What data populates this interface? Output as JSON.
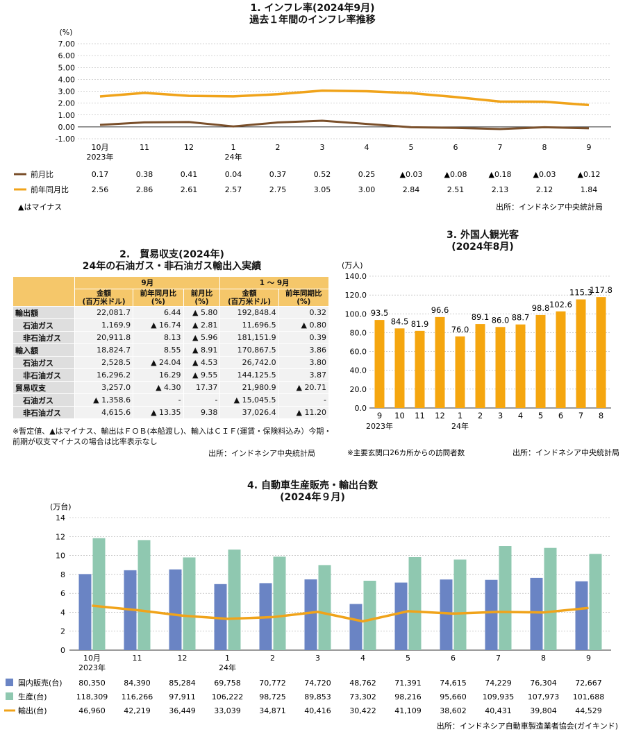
{
  "chart_data": [
    {
      "type": "line",
      "title": "1. インフレ率(2024年9月)",
      "subtitle": "過去１年間のインフレ率推移",
      "ylabel": "(%)",
      "ylim": [
        -1.0,
        7.0
      ],
      "yticks": [
        "7.00",
        "6.00",
        "5.00",
        "4.00",
        "3.00",
        "2.00",
        "1.00",
        "0.00",
        "-1.00"
      ],
      "categories": [
        "10月",
        "11",
        "12",
        "1",
        "2",
        "3",
        "4",
        "5",
        "6",
        "7",
        "8",
        "9"
      ],
      "category_sublabels": [
        "2023年",
        "",
        "",
        "24年",
        "",
        "",
        "",
        "",
        "",
        "",
        "",
        ""
      ],
      "series": [
        {
          "name": "前月比",
          "color": "#7a4f2a",
          "values": [
            0.17,
            0.38,
            0.41,
            0.04,
            0.37,
            0.52,
            0.25,
            -0.03,
            -0.08,
            -0.18,
            -0.03,
            -0.12
          ],
          "labels": [
            "0.17",
            "0.38",
            "0.41",
            "0.04",
            "0.37",
            "0.52",
            "0.25",
            "▲0.03",
            "▲0.08",
            "▲0.18",
            "▲0.03",
            "▲0.12"
          ]
        },
        {
          "name": "前年同月比",
          "color": "#f0a31a",
          "values": [
            2.56,
            2.86,
            2.61,
            2.57,
            2.75,
            3.05,
            3.0,
            2.84,
            2.51,
            2.13,
            2.12,
            1.84
          ],
          "labels": [
            "2.56",
            "2.86",
            "2.61",
            "2.57",
            "2.75",
            "3.05",
            "3.00",
            "2.84",
            "2.51",
            "2.13",
            "2.12",
            "1.84"
          ]
        }
      ],
      "note": "▲はマイナス",
      "source": "出所：インドネシア中央統計局",
      "grid": true
    },
    {
      "type": "table",
      "title": "2.　貿易収支(2024年)",
      "subtitle": "24年の石油ガス・非石油ガス輸出入実績",
      "group_headers": [
        "9月",
        "1 〜 9月"
      ],
      "columns": [
        "金額\n(百万米ドル)",
        "前年同月比\n(%)",
        "前月比\n(%)",
        "金額\n(百万米ドル)",
        "前年同期比\n(%)"
      ],
      "rows": [
        {
          "label": "輸出額",
          "sub": false,
          "cells": [
            "22,081.7",
            "6.44",
            "▲ 5.80",
            "192,848.4",
            "0.32"
          ]
        },
        {
          "label": "石油ガス",
          "sub": true,
          "cells": [
            "1,169.9",
            "▲ 16.74",
            "▲ 2.81",
            "11,696.5",
            "▲ 0.80"
          ]
        },
        {
          "label": "非石油ガス",
          "sub": true,
          "cells": [
            "20,911.8",
            "8.13",
            "▲ 5.96",
            "181,151.9",
            "0.39"
          ]
        },
        {
          "label": "輸入額",
          "sub": false,
          "cells": [
            "18,824.7",
            "8.55",
            "▲ 8.91",
            "170,867.5",
            "3.86"
          ]
        },
        {
          "label": "石油ガス",
          "sub": true,
          "cells": [
            "2,528.5",
            "▲ 24.04",
            "▲ 4.53",
            "26,742.0",
            "3.80"
          ]
        },
        {
          "label": "非石油ガス",
          "sub": true,
          "cells": [
            "16,296.2",
            "16.29",
            "▲ 9.55",
            "144,125.5",
            "3.87"
          ]
        },
        {
          "label": "貿易収支",
          "sub": false,
          "cells": [
            "3,257.0",
            "▲ 4.30",
            "17.37",
            "21,980.9",
            "▲ 20.71"
          ]
        },
        {
          "label": "石油ガス",
          "sub": true,
          "cells": [
            "▲ 1,358.6",
            "-",
            "-",
            "▲ 15,045.5",
            "-"
          ]
        },
        {
          "label": "非石油ガス",
          "sub": true,
          "cells": [
            "4,615.6",
            "▲ 13.35",
            "9.38",
            "37,026.4",
            "▲ 11.20"
          ]
        }
      ],
      "note": "※暫定値、▲はマイナス、輸出はＦＯＢ(本船渡し)、輸入はＣＩＦ(運賃・保険料込み）今期・前期が収支マイナスの場合は比率表示なし",
      "source": "出所：インドネシア中央統計局"
    },
    {
      "type": "bar",
      "title": "3. 外国人観光客",
      "subtitle": "(2024年8月)",
      "ylabel": "(万人)",
      "ylim": [
        0,
        140
      ],
      "yticks": [
        "140.0",
        "120.0",
        "100.0",
        "80.0",
        "60.0",
        "40.0",
        "20.0",
        "0.0"
      ],
      "categories": [
        "9",
        "10",
        "11",
        "12",
        "1",
        "2",
        "3",
        "4",
        "5",
        "6",
        "7",
        "8"
      ],
      "category_sublabels": [
        "2023年",
        "",
        "",
        "",
        "24年",
        "",
        "",
        "",
        "",
        "",
        "",
        ""
      ],
      "values": [
        93.5,
        84.5,
        81.9,
        96.6,
        76.0,
        89.1,
        86.0,
        88.7,
        98.8,
        102.6,
        115.3,
        117.8
      ],
      "labels": [
        "93.5",
        "84.5",
        "81.9",
        "96.6",
        "76.0",
        "89.1",
        "86.0",
        "88.7",
        "98.8",
        "102.6",
        "115.3",
        "117.8"
      ],
      "color": "#f5a60f",
      "note": "※主要玄関口26カ所からの訪問者数",
      "source": "出所：インドネシア中央統計局"
    },
    {
      "type": "bar",
      "title": "4. 自動車生産販売・輸出台数",
      "subtitle": "(2024年９月)",
      "ylabel": "(万台)",
      "ylim": [
        0,
        14
      ],
      "yticks": [
        "14",
        "12",
        "10",
        "8",
        "6",
        "4",
        "2",
        "0"
      ],
      "categories": [
        "10月",
        "11",
        "12",
        "1",
        "2",
        "3",
        "4",
        "5",
        "6",
        "7",
        "8",
        "9"
      ],
      "category_sublabels": [
        "2023年",
        "",
        "",
        "24年",
        "",
        "",
        "",
        "",
        "",
        "",
        "",
        ""
      ],
      "series": [
        {
          "name": "国内販売(台)",
          "color": "#6a84c4",
          "values": [
            80350,
            84390,
            85284,
            69758,
            70772,
            74720,
            48762,
            71391,
            74615,
            74229,
            76304,
            72667
          ],
          "labels": [
            "80,350",
            "84,390",
            "85,284",
            "69,758",
            "70,772",
            "74,720",
            "48,762",
            "71,391",
            "74,615",
            "74,229",
            "76,304",
            "72,667"
          ]
        },
        {
          "name": "生産(台)",
          "color": "#8fc8b0",
          "values": [
            118309,
            116266,
            97911,
            106222,
            98725,
            89853,
            73302,
            98216,
            95660,
            109935,
            107973,
            101688
          ],
          "labels": [
            "118,309",
            "116,266",
            "97,911",
            "106,222",
            "98,725",
            "89,853",
            "73,302",
            "98,216",
            "95,660",
            "109,935",
            "107,973",
            "101,688"
          ]
        },
        {
          "name": "輸出(台)",
          "color": "#f0a31a",
          "values": [
            46960,
            42219,
            36449,
            33039,
            34871,
            40416,
            30422,
            41109,
            38602,
            40431,
            39804,
            44529
          ],
          "labels": [
            "46,960",
            "42,219",
            "36,449",
            "33,039",
            "34,871",
            "40,416",
            "30,422",
            "41,109",
            "38,602",
            "40,431",
            "39,804",
            "44,529"
          ]
        }
      ],
      "source": "出所：インドネシア自動車製造業者協会(ガイキンド)"
    }
  ]
}
